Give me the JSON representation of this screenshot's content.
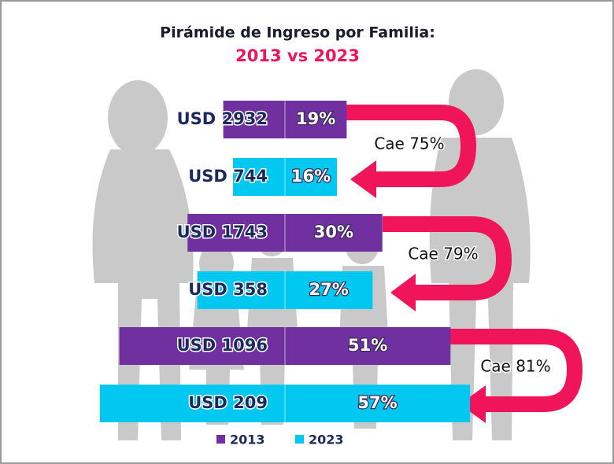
{
  "chart_data": {
    "type": "pyramid",
    "title": "Pirámide de Ingreso por Familia:",
    "subtitle": "2013 vs 2023",
    "series": [
      {
        "name": "2013",
        "color": "#7030a0",
        "values": [
          19,
          30,
          51
        ],
        "value_labels": [
          "19%",
          "30%",
          "51%"
        ],
        "income_labels": [
          "USD 2932",
          "USD 1743",
          "USD 1096"
        ]
      },
      {
        "name": "2023",
        "color": "#00c8f0",
        "values": [
          16,
          27,
          57
        ],
        "value_labels": [
          "16%",
          "27%",
          "57%"
        ],
        "income_labels": [
          "USD 744",
          "USD 358",
          "USD 209"
        ]
      }
    ],
    "annotations": [
      "Cae 75%",
      "Cae 79%",
      "Cae 81%"
    ],
    "annotation_color": "#f0145a"
  }
}
